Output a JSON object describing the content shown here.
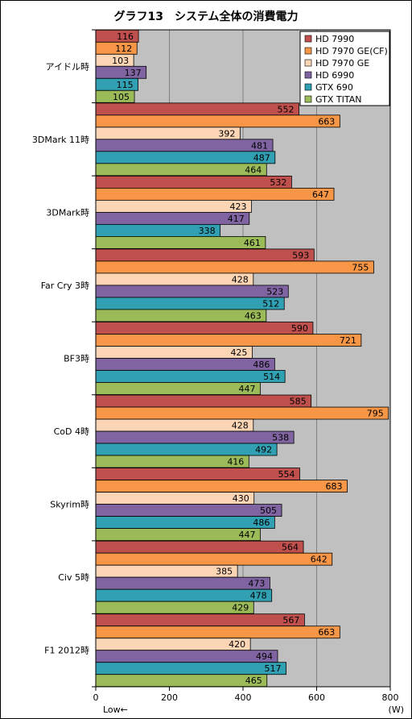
{
  "chart_data": {
    "type": "bar",
    "orientation": "horizontal",
    "title": "グラフ13　システム全体の消費電力",
    "xlabel_left": "Low←",
    "xlabel_unit": "(W)",
    "xlim": [
      0,
      800
    ],
    "xticks": [
      0,
      200,
      400,
      600,
      800
    ],
    "grid": true,
    "legend_position": "top-right",
    "categories": [
      "アイドル時",
      "3DMark 11時",
      "3DMark時",
      "Far Cry 3時",
      "BF3時",
      "CoD 4時",
      "Skyrim時",
      "Civ 5時",
      "F1 2012時"
    ],
    "series": [
      {
        "name": "HD 7990",
        "color": "#c0504d",
        "values": [
          116,
          552,
          532,
          593,
          590,
          585,
          554,
          564,
          567
        ]
      },
      {
        "name": "HD 7970 GE(CF)",
        "color": "#f79646",
        "values": [
          112,
          663,
          647,
          755,
          721,
          795,
          683,
          642,
          663
        ]
      },
      {
        "name": "HD 7970 GE",
        "color": "#fcd5b5",
        "values": [
          103,
          392,
          423,
          428,
          425,
          428,
          430,
          385,
          420
        ]
      },
      {
        "name": "HD 6990",
        "color": "#8064a2",
        "values": [
          137,
          481,
          417,
          523,
          486,
          538,
          505,
          473,
          494
        ]
      },
      {
        "name": "GTX 690",
        "color": "#31a0b2",
        "values": [
          115,
          487,
          338,
          512,
          514,
          492,
          486,
          478,
          517
        ]
      },
      {
        "name": "GTX TITAN",
        "color": "#9bbb59",
        "values": [
          105,
          464,
          461,
          463,
          447,
          416,
          447,
          429,
          465
        ]
      }
    ]
  }
}
